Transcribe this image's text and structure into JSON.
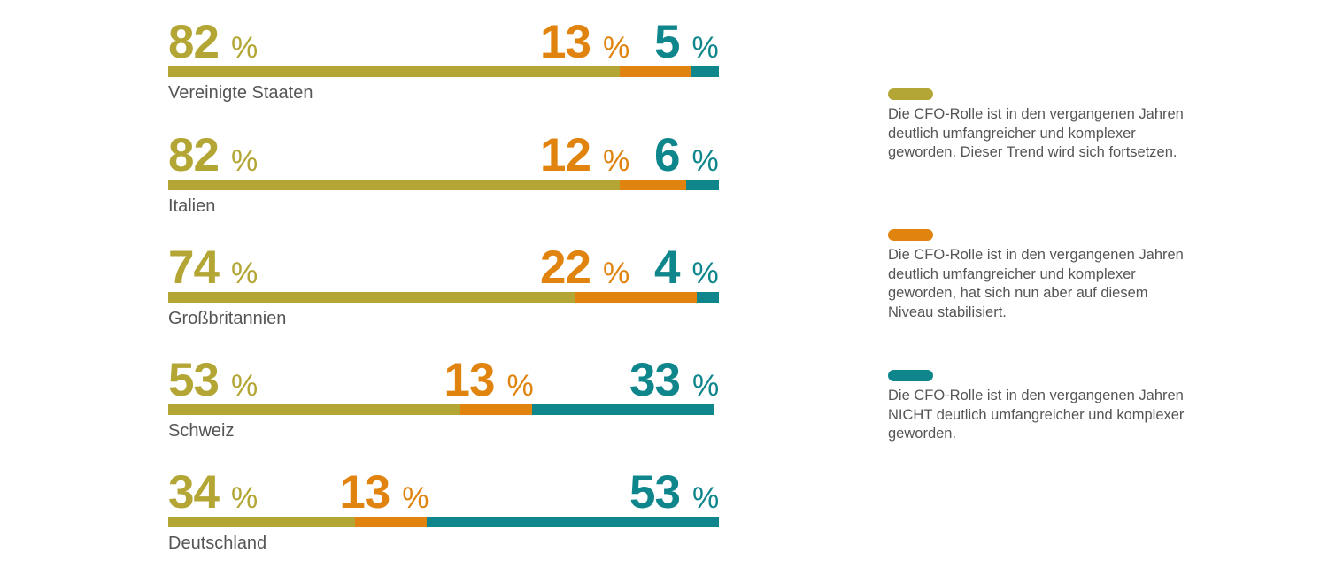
{
  "colors": {
    "olive": "#b3a634",
    "orange": "#e0840f",
    "teal": "#0f868c",
    "text": "#555555"
  },
  "chart_data": {
    "type": "bar",
    "orientation": "horizontal",
    "stacked": true,
    "percent_symbol": "%",
    "categories": [
      "Vereinigte Staaten",
      "Italien",
      "Großbritannien",
      "Schweiz",
      "Deutschland"
    ],
    "series": [
      {
        "name": "Die CFO-Rolle ist in den vergangenen Jahren deutlich umfangreicher und komplexer geworden. Dieser Trend wird sich fortsetzen.",
        "color": "#b3a634",
        "values": [
          82,
          82,
          74,
          53,
          34
        ]
      },
      {
        "name": "Die CFO-Rolle ist in den vergangenen Jahren deutlich umfangreicher und komplexer geworden, hat sich nun aber auf diesem Niveau stabilisiert.",
        "color": "#e0840f",
        "values": [
          13,
          12,
          22,
          13,
          13
        ]
      },
      {
        "name": "Die CFO-Rolle ist in den vergangenen Jahren NICHT deutlich umfangreicher und komplexer geworden.",
        "color": "#0f868c",
        "values": [
          5,
          6,
          4,
          33,
          53
        ]
      }
    ],
    "legend_position": "right",
    "grid": false,
    "xlim": [
      0,
      100
    ]
  }
}
